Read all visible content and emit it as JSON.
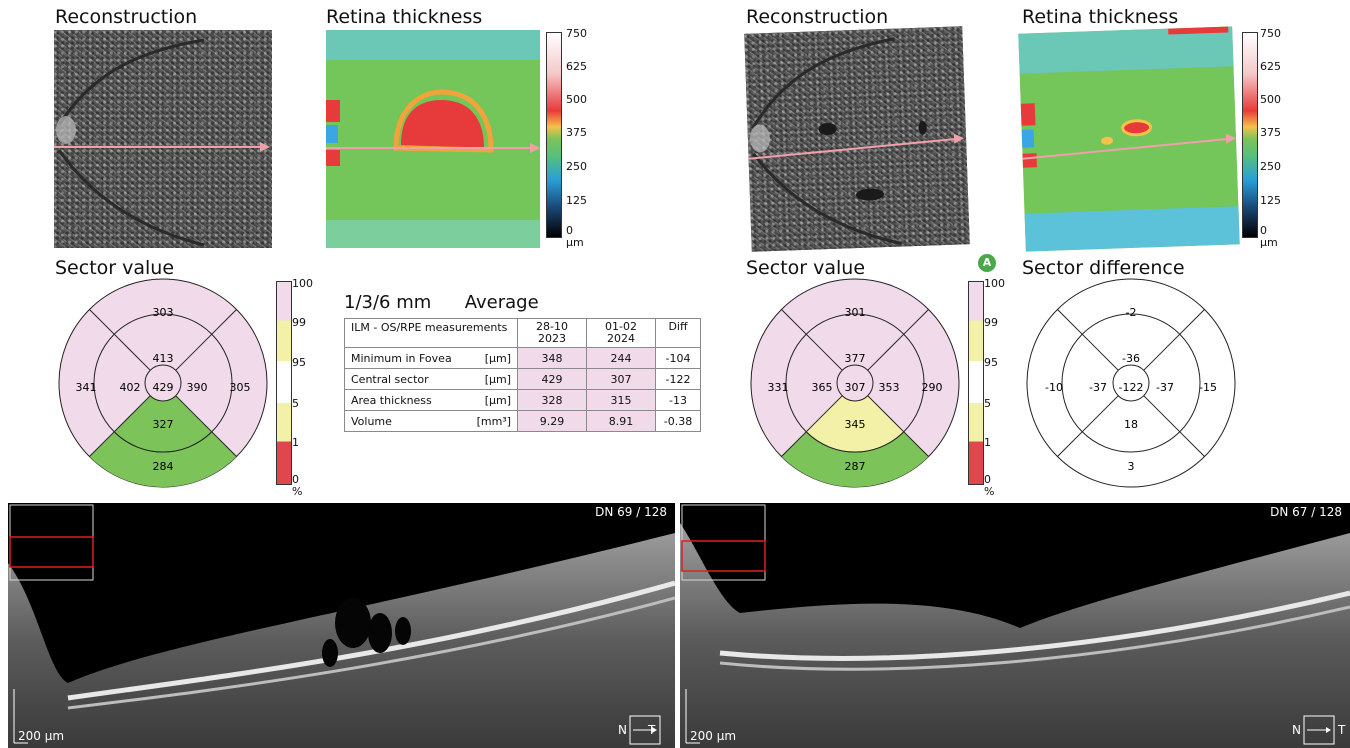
{
  "left": {
    "reconstruction_title": "Reconstruction",
    "thickness_title": "Retina thickness",
    "sector_title": "Sector value",
    "sectors": {
      "outer_top": "303",
      "inner_top": "413",
      "outer_left": "341",
      "inner_left": "402",
      "center": "429",
      "inner_right": "390",
      "outer_right": "305",
      "inner_bottom": "327",
      "outer_bottom": "284"
    },
    "oct_dn": "DN  69 / 128",
    "oct_scale": "200 µm",
    "oct_orient_n": "N",
    "oct_orient_t": "T"
  },
  "right": {
    "reconstruction_title": "Reconstruction",
    "thickness_title": "Retina thickness",
    "sector_title": "Sector value",
    "badge": "A",
    "difference_title": "Sector difference",
    "sectors": {
      "outer_top": "301",
      "inner_top": "377",
      "outer_left": "331",
      "inner_left": "365",
      "center": "307",
      "inner_right": "353",
      "outer_right": "290",
      "inner_bottom": "345",
      "outer_bottom": "287"
    },
    "difference": {
      "outer_top": "-2",
      "inner_top": "-36",
      "outer_left": "-10",
      "inner_left": "-37",
      "center": "-122",
      "inner_right": "-37",
      "outer_right": "-15",
      "inner_bottom": "18",
      "outer_bottom": "3"
    },
    "oct_dn": "DN  67 / 128",
    "oct_scale": "200 µm",
    "oct_orient_n": "N",
    "oct_orient_t": "T"
  },
  "thickness_scale": {
    "labels": [
      "750",
      "625",
      "500",
      "375",
      "250",
      "125",
      "0"
    ],
    "unit": "µm"
  },
  "sector_scale": {
    "labels": [
      "100",
      "99",
      "95",
      "5",
      "1",
      "0"
    ],
    "unit": "%"
  },
  "colors": {
    "pink": "#f1dbeb",
    "green": "#7cc35a",
    "yellow": "#f3f0a8",
    "red": "#e0474c"
  },
  "measurements": {
    "heading": "1/3/6 mm",
    "heading2": "Average",
    "col_label": "ILM - OS/RPE measurements",
    "col1_line1": "28-10",
    "col1_line2": "2023",
    "col2_line1": "01-02",
    "col2_line2": "2024",
    "col3": "Diff",
    "rows": [
      {
        "label": "Minimum in Fovea",
        "unit": "[µm]",
        "v1": "348",
        "v2": "244",
        "diff": "-104"
      },
      {
        "label": "Central sector",
        "unit": "[µm]",
        "v1": "429",
        "v2": "307",
        "diff": "-122"
      },
      {
        "label": "Area thickness",
        "unit": "[µm]",
        "v1": "328",
        "v2": "315",
        "diff": "-13"
      },
      {
        "label": "Volume",
        "unit": "[mm³]",
        "v1": "9.29",
        "v2": "8.91",
        "diff": "-0.38"
      }
    ]
  }
}
